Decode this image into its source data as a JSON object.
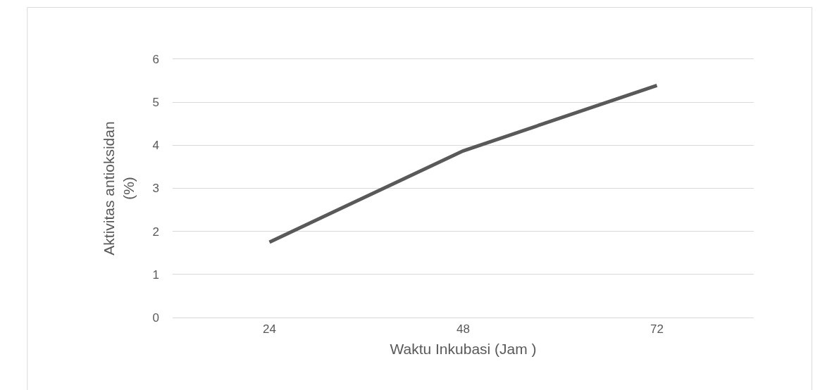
{
  "chart_data": {
    "type": "line",
    "xlabel": "Waktu Inkubasi (Jam )",
    "ylabel": "Aktivitas antioksidan\n(%)",
    "categories": [
      "24",
      "48",
      "72"
    ],
    "series": [
      {
        "color": "#595959",
        "values": [
          1.75,
          3.87,
          5.39
        ]
      }
    ],
    "ylim": [
      0,
      6
    ],
    "yticks": [
      0,
      1,
      2,
      3,
      4,
      5,
      6
    ],
    "grid": "y",
    "marker": "none",
    "line_style": "solid"
  }
}
